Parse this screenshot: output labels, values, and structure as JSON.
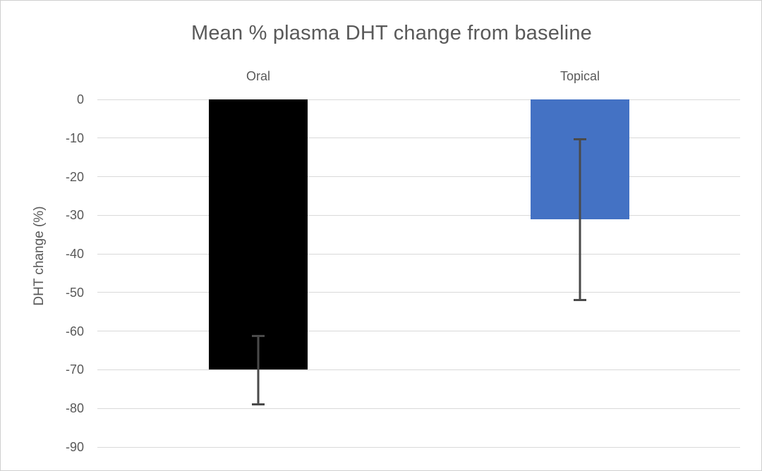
{
  "chart_data": {
    "type": "bar",
    "title": "Mean % plasma DHT change from baseline",
    "xlabel": "",
    "ylabel": "DHT change (%)",
    "categories": [
      "Oral",
      "Topical"
    ],
    "series": [
      {
        "name": "Mean % plasma DHT change",
        "values": [
          -70,
          -31
        ]
      }
    ],
    "error_bars": [
      {
        "high": -61,
        "low": -79
      },
      {
        "high": -10,
        "low": -52
      }
    ],
    "bar_colors": [
      "#000000",
      "#4472c4"
    ],
    "ylim": [
      0,
      -90
    ],
    "yticks": [
      0,
      -10,
      -20,
      -30,
      -40,
      -50,
      -60,
      -70,
      -80,
      -90
    ],
    "grid": true,
    "legend_position": "none",
    "colors": {
      "title_text": "#595959",
      "axis_text": "#595959",
      "gridline": "#d9d9d9",
      "error_bar": "#4a4a4a",
      "background": "#ffffff",
      "frame_border": "#cfcfcf"
    }
  }
}
